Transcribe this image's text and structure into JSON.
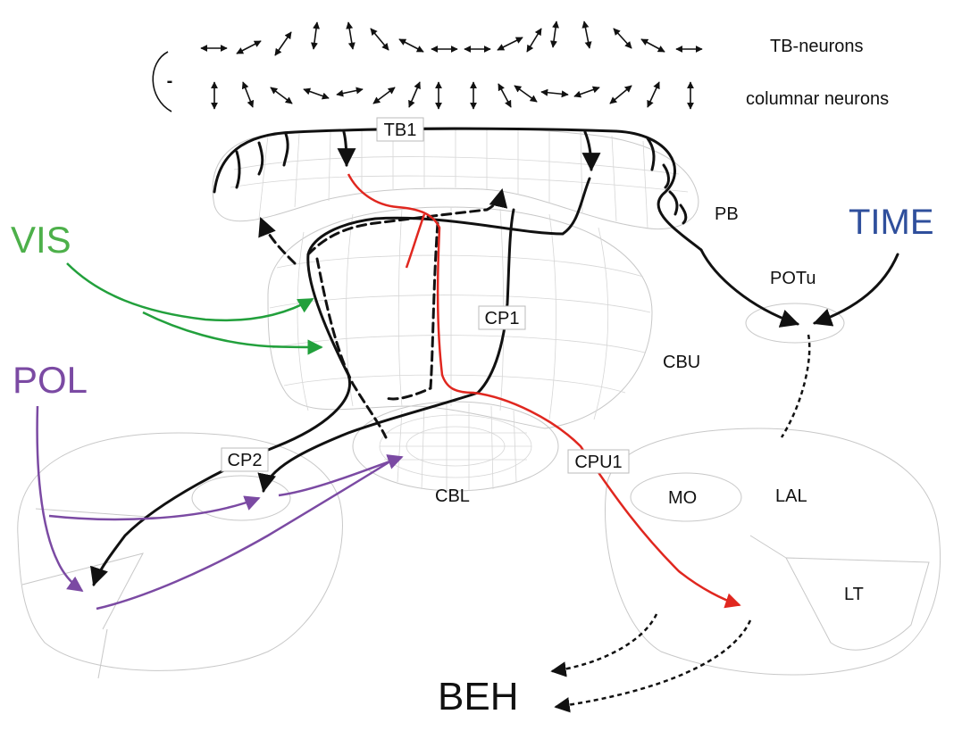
{
  "labels": {
    "tb_neurons": "TB-neurons",
    "columnar_neurons": "columnar neurons",
    "minus": "-",
    "tb1": "TB1",
    "pb": "PB",
    "potu": "POTu",
    "time": "TIME",
    "vis": "VIS",
    "pol": "POL",
    "cp1": "CP1",
    "cbu": "CBU",
    "cp2": "CP2",
    "cbl": "CBL",
    "cpu1": "CPU1",
    "mo": "MO",
    "lal": "LAL",
    "lt": "LT",
    "beh": "BEH"
  },
  "colors": {
    "vis": "#4db04a",
    "pol": "#7b4aa3",
    "time": "#2f4f9c",
    "cpu1": "#e0271f",
    "black": "#111111"
  }
}
